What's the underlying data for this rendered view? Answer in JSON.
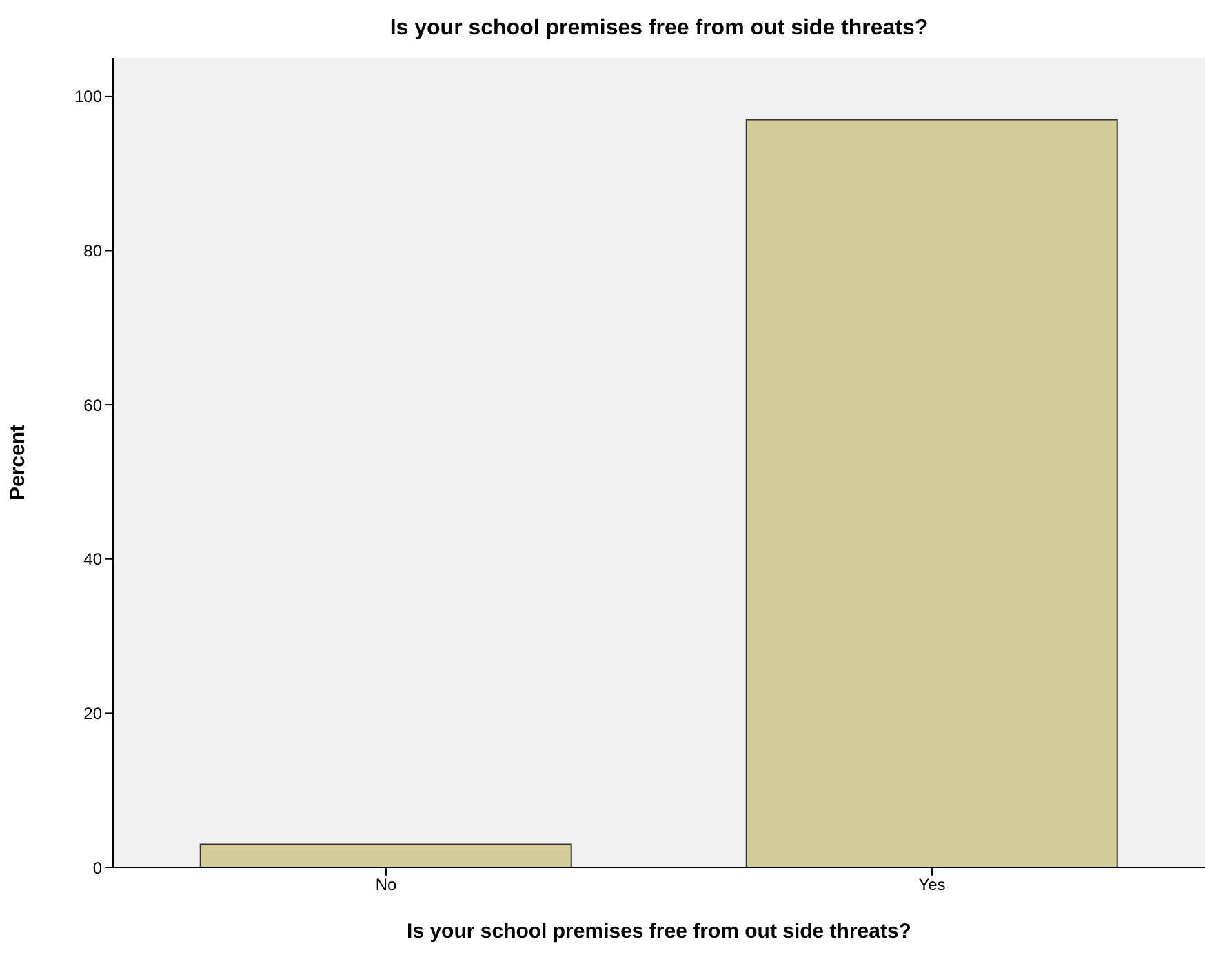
{
  "chart_data": {
    "type": "bar",
    "title": "Is your school premises free from out side threats?",
    "xlabel": "Is your school premises free from out side threats?",
    "ylabel": "Percent",
    "categories": [
      "No",
      "Yes"
    ],
    "values": [
      3,
      97
    ],
    "color": "#d3ce97",
    "ylim": [
      0,
      105
    ],
    "yticks": [
      0,
      20,
      40,
      60,
      80,
      100
    ],
    "grid": false
  }
}
